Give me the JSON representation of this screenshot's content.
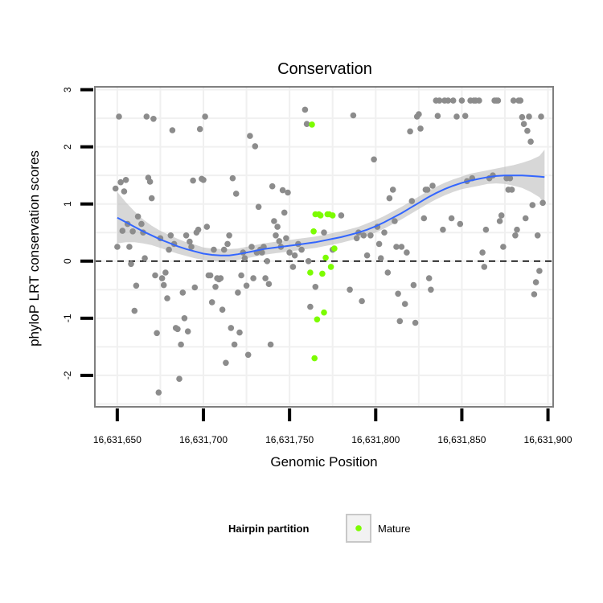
{
  "chart_data": {
    "type": "scatter",
    "title": "Conservation",
    "xlabel": "Genomic Position",
    "ylabel": "phyloP LRT conservation scores",
    "xlim": [
      16631637,
      16631903
    ],
    "ylim": [
      -2.55,
      3.05
    ],
    "x_ticks": [
      16631650,
      16631700,
      16631750,
      16631800,
      16631850,
      16631900
    ],
    "x_tick_labels": [
      "16,631,650",
      "16,631,700",
      "16,631,750",
      "16,631,800",
      "16,631,850",
      "16,631,900"
    ],
    "y_ticks": [
      -2,
      -1,
      0,
      1,
      2,
      3
    ],
    "y_tick_labels": [
      "-2",
      "-1",
      "0",
      "1",
      "2",
      "3"
    ],
    "grid": true,
    "reference_line": {
      "y": 0,
      "style": "dashed"
    },
    "colors": {
      "background_points": "#8c8c8c",
      "mature": "#7cfc00",
      "smooth_line": "#3366ff",
      "confidence_band": "#bdbdbd",
      "grid": "#f0f0f0",
      "panel_border": "#7f7f7f"
    },
    "legend": {
      "title": "Hairpin partition",
      "placement": "bottom",
      "entries": [
        {
          "label": "Mature",
          "color": "#7cfc00"
        }
      ]
    },
    "series": [
      {
        "points": [
          [
            16631649,
            1.27
          ],
          [
            16631650,
            0.25
          ],
          [
            16631651,
            2.53
          ],
          [
            16631652,
            1.38
          ],
          [
            16631653,
            0.53
          ],
          [
            16631654,
            1.22
          ],
          [
            16631655,
            1.42
          ],
          [
            16631656,
            0.65
          ],
          [
            16631657,
            0.25
          ],
          [
            16631658,
            -0.05
          ],
          [
            16631659,
            0.52
          ],
          [
            16631660,
            -0.87
          ],
          [
            16631661,
            -0.43
          ],
          [
            16631662,
            0.78
          ],
          [
            16631664,
            0.65
          ],
          [
            16631665,
            0.5
          ],
          [
            16631666,
            0.05
          ],
          [
            16631667,
            2.53
          ],
          [
            16631668,
            1.46
          ],
          [
            16631669,
            1.39
          ],
          [
            16631670,
            1.1
          ],
          [
            16631671,
            2.49
          ],
          [
            16631672,
            -0.25
          ],
          [
            16631673,
            -1.26
          ],
          [
            16631674,
            -2.3
          ],
          [
            16631675,
            0.4
          ],
          [
            16631676,
            -0.3
          ],
          [
            16631677,
            -0.42
          ],
          [
            16631678,
            -0.2
          ],
          [
            16631679,
            -0.65
          ],
          [
            16631680,
            0.2
          ],
          [
            16631681,
            0.45
          ],
          [
            16631682,
            2.29
          ],
          [
            16631683,
            0.3
          ],
          [
            16631684,
            -1.17
          ],
          [
            16631685,
            -1.19
          ],
          [
            16631686,
            -2.06
          ],
          [
            16631687,
            -1.46
          ],
          [
            16631688,
            -0.55
          ],
          [
            16631689,
            -1.0
          ],
          [
            16631690,
            0.45
          ],
          [
            16631691,
            -1.23
          ],
          [
            16631692,
            0.34
          ],
          [
            16631693,
            0.25
          ],
          [
            16631694,
            1.41
          ],
          [
            16631695,
            -0.46
          ],
          [
            16631696,
            0.5
          ],
          [
            16631697,
            0.55
          ],
          [
            16631698,
            2.31
          ],
          [
            16631699,
            1.44
          ],
          [
            16631700,
            1.42
          ],
          [
            16631701,
            2.53
          ],
          [
            16631702,
            0.6
          ],
          [
            16631703,
            -0.25
          ],
          [
            16631704,
            -0.25
          ],
          [
            16631705,
            -0.72
          ],
          [
            16631706,
            0.2
          ],
          [
            16631707,
            -0.45
          ],
          [
            16631708,
            -0.3
          ],
          [
            16631709,
            -0.32
          ],
          [
            16631710,
            -0.3
          ],
          [
            16631711,
            -0.85
          ],
          [
            16631712,
            0.2
          ],
          [
            16631713,
            -1.78
          ],
          [
            16631714,
            0.3
          ],
          [
            16631715,
            0.45
          ],
          [
            16631716,
            -1.17
          ],
          [
            16631717,
            1.45
          ],
          [
            16631718,
            -1.46
          ],
          [
            16631719,
            1.18
          ],
          [
            16631720,
            -0.55
          ],
          [
            16631721,
            -1.25
          ],
          [
            16631722,
            -0.25
          ],
          [
            16631723,
            0.15
          ],
          [
            16631724,
            0.05
          ],
          [
            16631725,
            -0.43
          ],
          [
            16631726,
            -1.64
          ],
          [
            16631727,
            2.19
          ],
          [
            16631728,
            0.25
          ],
          [
            16631729,
            -0.3
          ],
          [
            16631730,
            2.01
          ],
          [
            16631731,
            0.15
          ],
          [
            16631732,
            0.95
          ],
          [
            16631733,
            0.2
          ],
          [
            16631734,
            0.15
          ],
          [
            16631735,
            0.25
          ],
          [
            16631736,
            -0.3
          ],
          [
            16631737,
            0.0
          ],
          [
            16631738,
            -0.4
          ],
          [
            16631739,
            -1.46
          ],
          [
            16631740,
            1.31
          ],
          [
            16631741,
            0.7
          ],
          [
            16631742,
            0.45
          ],
          [
            16631743,
            0.6
          ],
          [
            16631744,
            0.35
          ],
          [
            16631745,
            0.25
          ],
          [
            16631746,
            1.24
          ],
          [
            16631747,
            0.85
          ],
          [
            16631748,
            0.4
          ],
          [
            16631749,
            1.2
          ],
          [
            16631750,
            0.15
          ],
          [
            16631752,
            -0.1
          ],
          [
            16631753,
            0.1
          ],
          [
            16631755,
            0.3
          ],
          [
            16631757,
            0.2
          ],
          [
            16631759,
            2.65
          ],
          [
            16631760,
            2.4
          ],
          [
            16631761,
            0.0
          ],
          [
            16631762,
            -0.8
          ],
          [
            16631765,
            -0.45
          ],
          [
            16631770,
            0.5
          ],
          [
            16631775,
            0.2
          ],
          [
            16631780,
            0.8
          ],
          [
            16631785,
            -0.5
          ],
          [
            16631787,
            2.55
          ],
          [
            16631789,
            0.4
          ],
          [
            16631790,
            0.5
          ],
          [
            16631792,
            -0.7
          ],
          [
            16631793,
            0.45
          ],
          [
            16631795,
            0.1
          ],
          [
            16631797,
            0.45
          ],
          [
            16631799,
            1.78
          ],
          [
            16631801,
            0.6
          ],
          [
            16631802,
            0.3
          ],
          [
            16631803,
            0.05
          ],
          [
            16631805,
            0.5
          ],
          [
            16631807,
            -0.2
          ],
          [
            16631808,
            1.1
          ],
          [
            16631810,
            1.25
          ],
          [
            16631811,
            0.7
          ],
          [
            16631812,
            0.25
          ],
          [
            16631813,
            -0.57
          ],
          [
            16631814,
            -1.05
          ],
          [
            16631815,
            0.25
          ],
          [
            16631817,
            -0.75
          ],
          [
            16631818,
            0.15
          ],
          [
            16631820,
            2.27
          ],
          [
            16631821,
            1.05
          ],
          [
            16631822,
            -0.42
          ],
          [
            16631823,
            -1.08
          ],
          [
            16631824,
            2.53
          ],
          [
            16631825,
            2.57
          ],
          [
            16631826,
            2.32
          ],
          [
            16631828,
            0.75
          ],
          [
            16631829,
            1.25
          ],
          [
            16631830,
            1.25
          ],
          [
            16631831,
            -0.3
          ],
          [
            16631832,
            -0.5
          ],
          [
            16631833,
            1.32
          ],
          [
            16631835,
            2.81
          ],
          [
            16631836,
            2.54
          ],
          [
            16631837,
            2.81
          ],
          [
            16631839,
            0.55
          ],
          [
            16631840,
            2.81
          ],
          [
            16631842,
            2.81
          ],
          [
            16631844,
            0.75
          ],
          [
            16631845,
            2.81
          ],
          [
            16631847,
            2.53
          ],
          [
            16631849,
            0.65
          ],
          [
            16631850,
            2.81
          ],
          [
            16631852,
            2.54
          ],
          [
            16631853,
            1.4
          ],
          [
            16631855,
            2.81
          ],
          [
            16631856,
            1.45
          ],
          [
            16631857,
            2.81
          ],
          [
            16631858,
            2.81
          ],
          [
            16631860,
            2.81
          ],
          [
            16631862,
            0.15
          ],
          [
            16631863,
            -0.1
          ],
          [
            16631864,
            0.55
          ],
          [
            16631866,
            1.45
          ],
          [
            16631868,
            1.5
          ],
          [
            16631869,
            2.81
          ],
          [
            16631870,
            2.81
          ],
          [
            16631871,
            2.81
          ],
          [
            16631872,
            0.7
          ],
          [
            16631873,
            0.8
          ],
          [
            16631874,
            0.25
          ],
          [
            16631876,
            1.45
          ],
          [
            16631877,
            1.25
          ],
          [
            16631878,
            1.45
          ],
          [
            16631879,
            1.25
          ],
          [
            16631880,
            2.81
          ],
          [
            16631881,
            0.45
          ],
          [
            16631882,
            0.55
          ],
          [
            16631883,
            2.81
          ],
          [
            16631884,
            2.81
          ],
          [
            16631885,
            2.52
          ],
          [
            16631886,
            2.4
          ],
          [
            16631887,
            0.75
          ],
          [
            16631888,
            2.28
          ],
          [
            16631889,
            2.53
          ],
          [
            16631890,
            2.09
          ],
          [
            16631891,
            0.98
          ],
          [
            16631892,
            -0.58
          ],
          [
            16631893,
            -0.37
          ],
          [
            16631894,
            0.45
          ],
          [
            16631895,
            -0.17
          ],
          [
            16631896,
            2.53
          ],
          [
            16631897,
            1.02
          ]
        ]
      },
      {
        "name": "Mature",
        "points": [
          [
            16631762,
            -0.2
          ],
          [
            16631763,
            2.39
          ],
          [
            16631764,
            0.52
          ],
          [
            16631764.5,
            -1.7
          ],
          [
            16631765,
            0.82
          ],
          [
            16631766,
            -1.02
          ],
          [
            16631767,
            0.82
          ],
          [
            16631768,
            0.8
          ],
          [
            16631769,
            -0.22
          ],
          [
            16631770,
            -0.9
          ],
          [
            16631771,
            0.06
          ],
          [
            16631772,
            0.82
          ],
          [
            16631773,
            0.82
          ],
          [
            16631774,
            -0.1
          ],
          [
            16631775,
            0.8
          ],
          [
            16631776,
            0.22
          ]
        ]
      }
    ],
    "smooth": {
      "x": [
        16631650,
        16631655,
        16631660,
        16631665,
        16631670,
        16631675,
        16631680,
        16631685,
        16631690,
        16631695,
        16631700,
        16631705,
        16631710,
        16631715,
        16631720,
        16631725,
        16631730,
        16631735,
        16631740,
        16631745,
        16631750,
        16631755,
        16631760,
        16631765,
        16631770,
        16631775,
        16631780,
        16631785,
        16631790,
        16631795,
        16631800,
        16631805,
        16631810,
        16631815,
        16631820,
        16631825,
        16631830,
        16631835,
        16631840,
        16631845,
        16631850,
        16631855,
        16631860,
        16631865,
        16631870,
        16631875,
        16631880,
        16631885,
        16631890,
        16631895,
        16631898
      ],
      "y": [
        0.76,
        0.68,
        0.6,
        0.52,
        0.45,
        0.38,
        0.32,
        0.26,
        0.21,
        0.17,
        0.13,
        0.11,
        0.1,
        0.1,
        0.12,
        0.15,
        0.18,
        0.21,
        0.23,
        0.25,
        0.27,
        0.29,
        0.31,
        0.33,
        0.36,
        0.39,
        0.42,
        0.46,
        0.5,
        0.55,
        0.61,
        0.68,
        0.76,
        0.84,
        0.93,
        1.02,
        1.11,
        1.19,
        1.26,
        1.32,
        1.37,
        1.41,
        1.44,
        1.47,
        1.49,
        1.5,
        1.5,
        1.5,
        1.49,
        1.48,
        1.47
      ],
      "se": [
        0.45,
        0.35,
        0.27,
        0.21,
        0.17,
        0.15,
        0.14,
        0.13,
        0.12,
        0.12,
        0.11,
        0.11,
        0.11,
        0.11,
        0.1,
        0.1,
        0.1,
        0.1,
        0.1,
        0.1,
        0.1,
        0.1,
        0.1,
        0.1,
        0.1,
        0.1,
        0.1,
        0.1,
        0.1,
        0.11,
        0.11,
        0.11,
        0.11,
        0.11,
        0.11,
        0.11,
        0.11,
        0.11,
        0.11,
        0.11,
        0.11,
        0.12,
        0.12,
        0.12,
        0.13,
        0.15,
        0.18,
        0.22,
        0.28,
        0.36,
        0.48
      ]
    }
  }
}
